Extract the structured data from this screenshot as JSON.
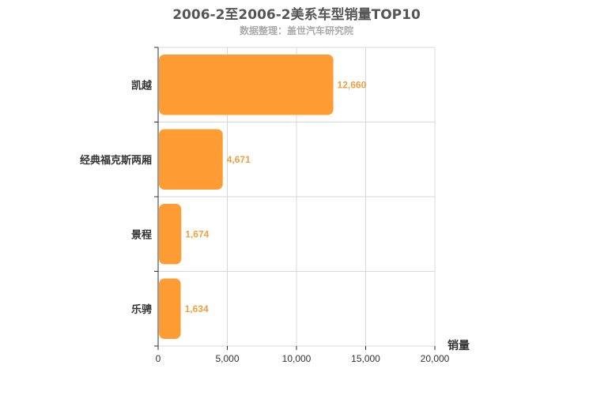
{
  "chart_data": {
    "type": "bar",
    "orientation": "horizontal",
    "title": "2006-2至2006-2美系车型销量TOP10",
    "subtitle": "数据整理：盖世汽车研究院",
    "categories": [
      "凯越",
      "经典福克斯两厢",
      "景程",
      "乐骋"
    ],
    "values": [
      12660,
      4671,
      1674,
      1634
    ],
    "value_labels": [
      "12,660",
      "4,671",
      "1,674",
      "1,634"
    ],
    "xlabel": "销量",
    "xlim": [
      0,
      20000
    ],
    "xticks": [
      0,
      5000,
      10000,
      15000,
      20000
    ],
    "xtick_labels": [
      "0",
      "5,000",
      "10,000",
      "15,000",
      "20,000"
    ],
    "grid": true,
    "bar_color": "#ff9c33",
    "label_color": "#f0a040"
  }
}
